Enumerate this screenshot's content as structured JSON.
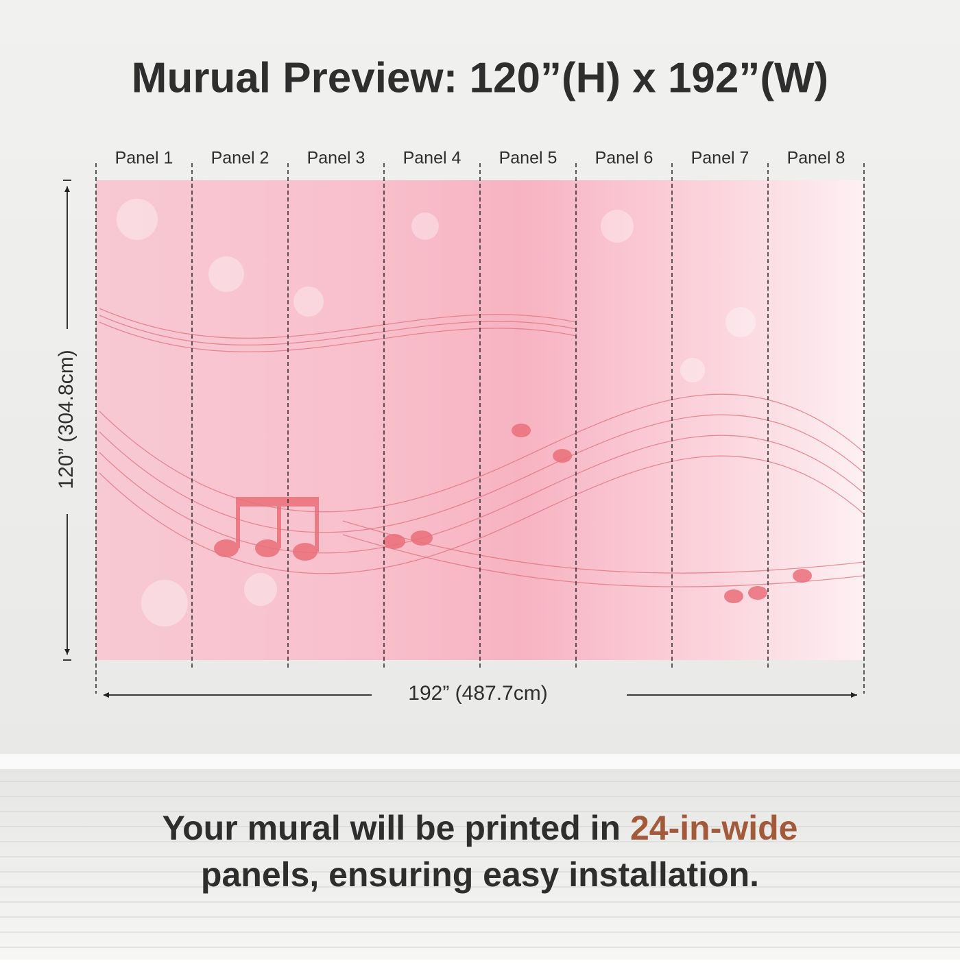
{
  "header": {
    "title": "Murual Preview: 120”(H) x 192”(W)"
  },
  "panels": [
    "Panel 1",
    "Panel 2",
    "Panel 3",
    "Panel 4",
    "Panel 5",
    "Panel 6",
    "Panel 7",
    "Panel 8"
  ],
  "dimensions": {
    "height": "120” (304.8cm)",
    "width": "192” (487.7cm)"
  },
  "footer": {
    "before": "Your mural will be printed in",
    "highlight": "24-in-wide",
    "after": "panels, ensuring easy installation."
  }
}
